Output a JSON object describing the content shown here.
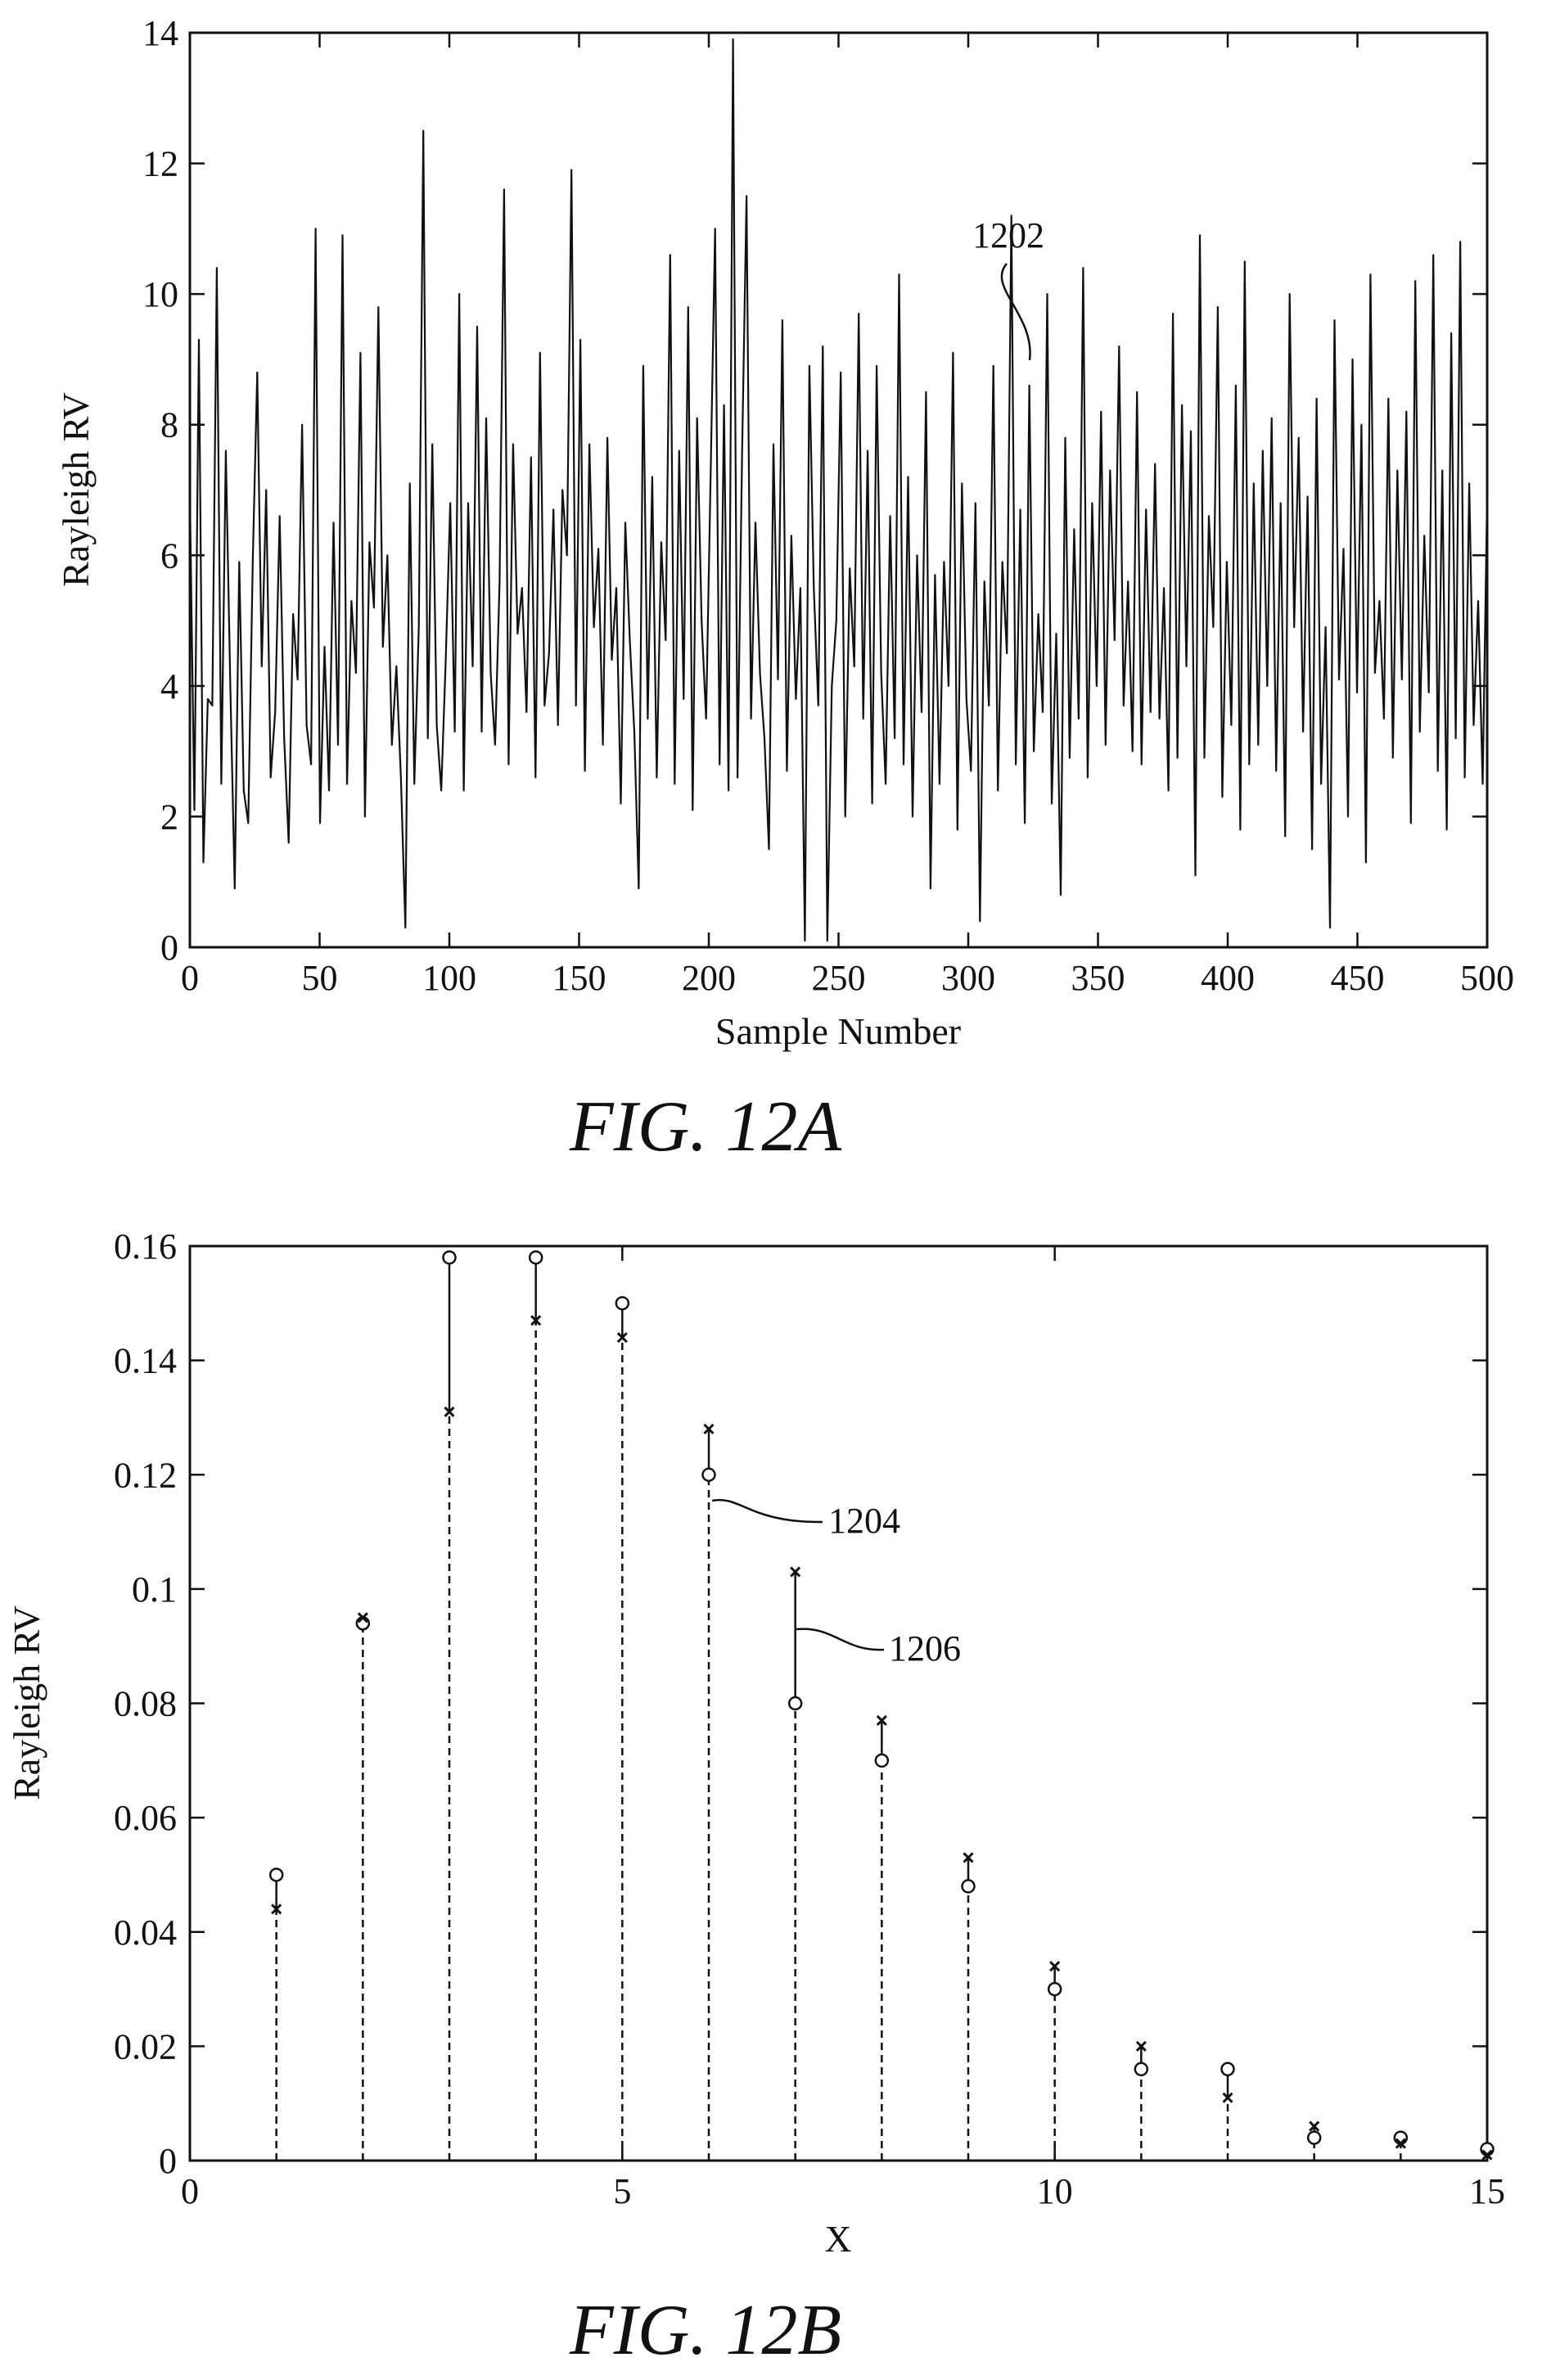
{
  "chart_data": [
    {
      "type": "line",
      "caption": "FIG. 12A",
      "title": "",
      "xlabel": "Sample Number",
      "ylabel": "Rayleigh RV",
      "xlim": [
        0,
        500
      ],
      "ylim": [
        0,
        14
      ],
      "xticks": [
        0,
        50,
        100,
        150,
        200,
        250,
        300,
        350,
        400,
        450,
        500
      ],
      "yticks": [
        0,
        2,
        4,
        6,
        8,
        10,
        12,
        14
      ],
      "grid": false,
      "legend": "none",
      "annotation": "1202",
      "series": [
        {
          "values": [
            6.9,
            2.1,
            9.3,
            1.3,
            3.8,
            3.7,
            10.4,
            2.5,
            7.6,
            4.0,
            0.9,
            5.9,
            2.4,
            1.9,
            5.9,
            8.8,
            4.3,
            7.0,
            2.6,
            3.6,
            6.6,
            3.2,
            1.6,
            5.1,
            4.1,
            8.0,
            3.4,
            2.8,
            11.0,
            1.9,
            4.6,
            2.4,
            6.5,
            3.1,
            10.9,
            2.5,
            5.3,
            4.2,
            9.1,
            2.0,
            6.2,
            5.2,
            9.8,
            4.6,
            6.0,
            3.1,
            4.3,
            2.6,
            0.3,
            7.1,
            2.5,
            4.9,
            12.5,
            3.2,
            7.7,
            3.4,
            2.4,
            4.4,
            6.8,
            3.3,
            10.0,
            2.4,
            6.8,
            4.3,
            9.5,
            3.3,
            8.1,
            4.2,
            3.1,
            5.6,
            11.6,
            2.8,
            7.7,
            4.8,
            5.5,
            3.6,
            7.5,
            2.6,
            9.1,
            3.7,
            4.5,
            6.7,
            3.4,
            7.0,
            6.0,
            11.9,
            3.7,
            9.3,
            2.7,
            7.7,
            4.9,
            6.1,
            3.1,
            7.8,
            4.4,
            5.5,
            2.2,
            6.5,
            4.7,
            3.3,
            0.9,
            8.9,
            3.5,
            7.2,
            2.6,
            6.2,
            4.7,
            10.6,
            2.5,
            7.6,
            3.8,
            9.8,
            2.1,
            8.1,
            5.0,
            3.5,
            7.2,
            11.0,
            2.8,
            8.3,
            2.4,
            13.9,
            2.6,
            7.5,
            11.5,
            3.5,
            6.5,
            4.2,
            3.2,
            1.5,
            7.7,
            4.1,
            9.6,
            2.7,
            6.3,
            3.8,
            5.5,
            0.1,
            8.9,
            5.5,
            3.7,
            9.2,
            0.1,
            4.0,
            5.0,
            8.8,
            2.0,
            5.8,
            4.3,
            9.7,
            3.5,
            7.6,
            2.2,
            8.9,
            4.2,
            2.5,
            6.6,
            3.2,
            10.3,
            2.8,
            7.2,
            2.0,
            6.0,
            3.6,
            8.5,
            0.9,
            5.7,
            2.5,
            5.9,
            4.0,
            9.1,
            1.8,
            7.1,
            3.8,
            2.7,
            6.8,
            0.4,
            5.6,
            3.7,
            8.9,
            2.4,
            5.9,
            4.5,
            11.2,
            2.8,
            6.7,
            1.9,
            8.6,
            3.0,
            5.1,
            3.6,
            10.0,
            2.2,
            4.8,
            0.8,
            7.8,
            2.9,
            6.4,
            3.5,
            10.4,
            2.6,
            6.8,
            4.0,
            8.2,
            3.1,
            7.3,
            4.7,
            9.2,
            3.7,
            5.6,
            3.0,
            8.5,
            2.8,
            6.7,
            3.6,
            7.4,
            3.5,
            5.5,
            2.4,
            9.7,
            2.9,
            8.3,
            4.3,
            7.9,
            1.1,
            10.9,
            2.9,
            6.6,
            4.9,
            9.8,
            2.3,
            5.9,
            3.4,
            8.6,
            1.8,
            10.5,
            2.8,
            7.1,
            3.1,
            7.6,
            4.0,
            8.1,
            2.7,
            6.8,
            1.7,
            10.0,
            4.9,
            7.8,
            3.3,
            6.9,
            1.5,
            8.4,
            2.5,
            4.9,
            0.3,
            9.6,
            4.1,
            6.1,
            2.0,
            9.0,
            3.9,
            8.0,
            1.3,
            10.3,
            4.2,
            5.3,
            3.5,
            8.4,
            2.9,
            7.3,
            4.1,
            8.2,
            1.9,
            10.2,
            3.3,
            6.3,
            3.9,
            10.6,
            2.7,
            7.3,
            1.8,
            9.4,
            3.2,
            10.8,
            2.6,
            7.1,
            3.4,
            5.3,
            2.5,
            6.9
          ]
        }
      ]
    },
    {
      "type": "stem",
      "caption": "FIG. 12B",
      "title": "",
      "xlabel": "X",
      "ylabel": "Rayleigh RV",
      "xlim": [
        0,
        15
      ],
      "ylim": [
        0,
        0.16
      ],
      "xticks": [
        0,
        5,
        10,
        15
      ],
      "yticks": [
        0,
        0.02,
        0.04,
        0.06,
        0.08,
        0.1,
        0.12,
        0.14,
        0.16
      ],
      "ytick_labels": [
        "0",
        "0.02",
        "0.04",
        "0.06",
        "0.08",
        "0.1",
        "0.12",
        "0.14",
        "0.16"
      ],
      "grid": false,
      "legend": "none",
      "annotations": [
        "1204",
        "1206"
      ],
      "x": [
        1,
        2,
        3,
        4,
        5,
        6,
        7,
        8,
        9,
        10,
        11,
        12,
        13,
        14,
        15
      ],
      "series": [
        {
          "marker": "circle",
          "values": [
            0.05,
            0.094,
            0.158,
            0.158,
            0.15,
            0.12,
            0.08,
            0.07,
            0.048,
            0.03,
            0.016,
            0.016,
            0.004,
            0.004,
            0.002
          ]
        },
        {
          "marker": "cross",
          "values": [
            0.044,
            0.095,
            0.131,
            0.147,
            0.144,
            0.128,
            0.103,
            0.077,
            0.053,
            0.034,
            0.02,
            0.011,
            0.006,
            0.003,
            0.001
          ]
        }
      ]
    }
  ]
}
